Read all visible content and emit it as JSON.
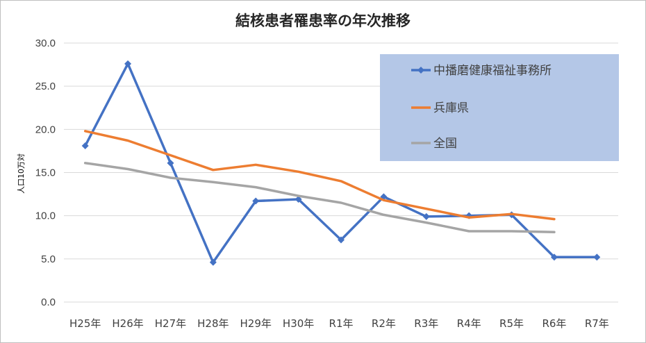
{
  "chart_data": {
    "type": "line",
    "title": "結核患者罹患率の年次推移",
    "ylabel": "人口10万対",
    "xlabel": "",
    "ylim": [
      0,
      30
    ],
    "yticks": [
      "0.0",
      "5.0",
      "10.0",
      "15.0",
      "20.0",
      "25.0",
      "30.0"
    ],
    "categories": [
      "H25年",
      "H26年",
      "H27年",
      "H28年",
      "H29年",
      "H30年",
      "R1年",
      "R2年",
      "R3年",
      "R4年",
      "R5年",
      "R6年",
      "R7年"
    ],
    "grid": true,
    "legend_position": "top-right",
    "series": [
      {
        "name": "中播磨健康福祉事務所",
        "color": "#4472c4",
        "marker": "diamond",
        "values": [
          18.1,
          27.6,
          16.1,
          4.6,
          11.7,
          11.9,
          7.2,
          12.2,
          9.9,
          10.0,
          10.1,
          5.2,
          5.2
        ]
      },
      {
        "name": "兵庫県",
        "color": "#ed7d31",
        "marker": "none",
        "values": [
          19.8,
          18.7,
          17.0,
          15.3,
          15.9,
          15.1,
          14.0,
          11.8,
          10.8,
          9.8,
          10.2,
          9.6,
          null
        ]
      },
      {
        "name": "全国",
        "color": "#a5a5a5",
        "marker": "none",
        "values": [
          16.1,
          15.4,
          14.4,
          13.9,
          13.3,
          12.3,
          11.5,
          10.1,
          9.2,
          8.2,
          8.2,
          8.1,
          null
        ]
      }
    ]
  },
  "colors": {
    "legend_background": "#b4c7e7",
    "gridline": "#d9d9d9",
    "axis_text": "#404040"
  }
}
